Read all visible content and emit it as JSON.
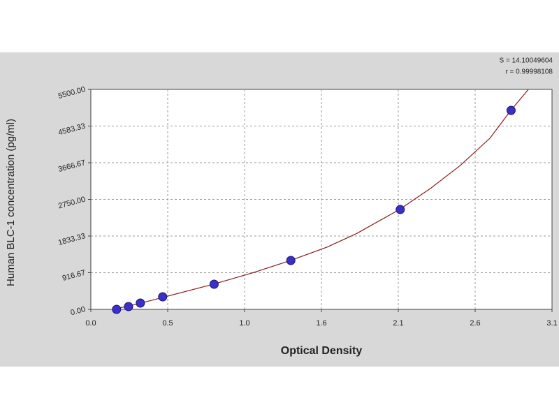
{
  "chart_data": {
    "type": "scatter",
    "x_label": "Optical Density",
    "y_label": "Human BLC-1 concentration (pg/ml)",
    "annotations": [
      "S = 14.10049604",
      "r = 0.99998108"
    ],
    "x": [
      0.174,
      0.255,
      0.335,
      0.486,
      0.834,
      1.353,
      2.093,
      2.843
    ],
    "values": [
      0,
      70,
      157,
      314,
      628,
      1222,
      2496,
      4974
    ],
    "color": "#3a2fc8",
    "curve": {
      "x": [
        0.15,
        0.3,
        0.5,
        0.83,
        1.1,
        1.35,
        1.6,
        1.8,
        2.09,
        2.3,
        2.5,
        2.7,
        2.84,
        2.96
      ],
      "values": [
        0,
        120,
        310,
        630,
        920,
        1220,
        1560,
        1900,
        2500,
        3030,
        3600,
        4280,
        4970,
        5500
      ],
      "color": "#8b1a1a"
    },
    "xlim": [
      0,
      3.12
    ],
    "xticks": [
      {
        "value": 0,
        "label": "0.0"
      },
      {
        "value": 0.52,
        "label": "0.5"
      },
      {
        "value": 1.04,
        "label": "1.0"
      },
      {
        "value": 1.56,
        "label": "1.6"
      },
      {
        "value": 2.08,
        "label": "2.1"
      },
      {
        "value": 2.6,
        "label": "2.6"
      },
      {
        "value": 3.12,
        "label": "3.1"
      }
    ],
    "ylim": [
      0,
      5500
    ],
    "yticks": [
      {
        "value": 0,
        "label": "0.00"
      },
      916.67,
      1833.33,
      {
        "value": 2750,
        "label": "2750.00"
      },
      3666.67,
      4583.33,
      {
        "value": 5500,
        "label": "5500.00"
      }
    ],
    "grid": true
  }
}
